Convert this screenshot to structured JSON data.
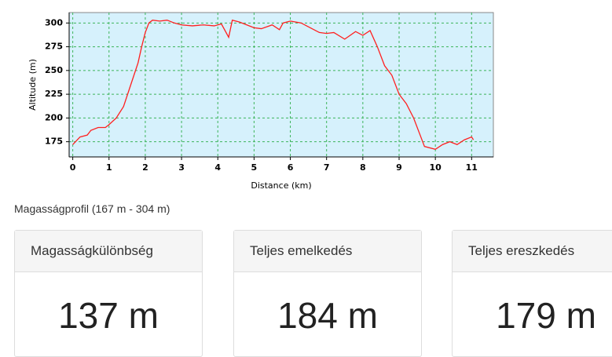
{
  "chart_data": {
    "type": "line",
    "x_label": "Distance (km)",
    "y_label": "Altitude (m)",
    "xlim": [
      -0.1,
      11.6
    ],
    "ylim": [
      159,
      311
    ],
    "xticks": [
      0,
      1,
      2,
      3,
      4,
      5,
      6,
      7,
      8,
      9,
      10,
      11
    ],
    "yticks": [
      175,
      200,
      225,
      250,
      275,
      300
    ],
    "grid": true,
    "background": "#d6f1fc",
    "series": [
      {
        "color": "#ff1f1f",
        "x": [
          0,
          0.2,
          0.4,
          0.5,
          0.7,
          0.9,
          1.0,
          1.2,
          1.4,
          1.6,
          1.8,
          1.9,
          2.0,
          2.1,
          2.2,
          2.4,
          2.6,
          2.8,
          3.0,
          3.3,
          3.6,
          3.9,
          4.1,
          4.3,
          4.4,
          4.6,
          4.8,
          5.0,
          5.2,
          5.5,
          5.7,
          5.8,
          6.0,
          6.3,
          6.5,
          6.8,
          7.0,
          7.2,
          7.5,
          7.8,
          8.0,
          8.2,
          8.4,
          8.6,
          8.8,
          9.0,
          9.2,
          9.4,
          9.6,
          9.7,
          10.0,
          10.2,
          10.4,
          10.6,
          10.8,
          11.0,
          11.05
        ],
        "values": [
          172,
          180,
          182,
          187,
          190,
          190,
          193,
          200,
          212,
          235,
          258,
          275,
          290,
          300,
          303,
          302,
          303,
          300,
          298,
          297,
          298,
          297,
          299,
          285,
          303,
          301,
          298,
          295,
          294,
          298,
          293,
          300,
          302,
          300,
          296,
          290,
          289,
          290,
          283,
          291,
          287,
          292,
          275,
          255,
          245,
          225,
          215,
          200,
          180,
          170,
          167,
          172,
          175,
          172,
          177,
          180,
          177
        ]
      }
    ]
  },
  "caption": "Magasságprofil (167 m - 304 m)",
  "cards": [
    {
      "title": "Magasságkülönbség",
      "value": "137 m"
    },
    {
      "title": "Teljes emelkedés",
      "value": "184 m"
    },
    {
      "title": "Teljes ereszkedés",
      "value": "179 m"
    }
  ]
}
